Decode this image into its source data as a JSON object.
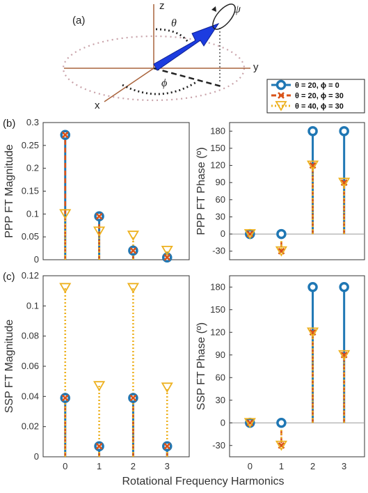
{
  "figure": {
    "panel_labels": {
      "a": "(a)",
      "b": "(b)",
      "c": "(c)"
    },
    "schematic": {
      "axis_z": "z",
      "axis_y": "y",
      "axis_x": "x",
      "theta": "θ",
      "phi": "ϕ",
      "psi": "ψ"
    },
    "xlabel": "Rotational Frequency Harmonics",
    "legend": [
      {
        "label": "θ = 20, ϕ = 0",
        "color": "#1f77b4",
        "marker": "circle",
        "line": "solid"
      },
      {
        "label": "θ = 20, ϕ = 30",
        "color": "#d95319",
        "marker": "x",
        "line": "dashed"
      },
      {
        "label": "θ = 40, ϕ = 30",
        "color": "#edb120",
        "marker": "triangle-down",
        "line": "dotted"
      }
    ]
  },
  "chart_data": [
    {
      "type": "stem",
      "ylabel": "PPP FT Magnitude",
      "categories": [
        "0",
        "1",
        "2",
        "3"
      ],
      "x": [
        0,
        1,
        2,
        3
      ],
      "ylim": [
        0,
        0.3
      ],
      "yticks": [
        "0",
        "0.05",
        "0.1",
        "0.15",
        "0.2",
        "0.25",
        "0.3"
      ],
      "series": [
        {
          "name": "θ = 20, ϕ = 0",
          "values": [
            0.273,
            0.095,
            0.02,
            0.005
          ]
        },
        {
          "name": "θ = 20, ϕ = 30",
          "values": [
            0.273,
            0.095,
            0.02,
            0.005
          ]
        },
        {
          "name": "θ = 40, ϕ = 30",
          "values": [
            0.1,
            0.062,
            0.053,
            0.02
          ]
        }
      ]
    },
    {
      "type": "stem",
      "ylabel": "PPP FT Phase (º)",
      "categories": [
        "0",
        "1",
        "2",
        "3"
      ],
      "x": [
        0,
        1,
        2,
        3
      ],
      "ylim": [
        -45,
        195
      ],
      "yticks": [
        "-30",
        "0",
        "30",
        "60",
        "90",
        "120",
        "150",
        "180"
      ],
      "series": [
        {
          "name": "θ = 20, ϕ = 0",
          "values": [
            0,
            0,
            180,
            180
          ]
        },
        {
          "name": "θ = 20, ϕ = 30",
          "values": [
            0,
            -30,
            120,
            90
          ]
        },
        {
          "name": "θ = 40, ϕ = 30",
          "values": [
            0,
            -30,
            120,
            90
          ]
        }
      ]
    },
    {
      "type": "stem",
      "ylabel": "SSP FT Magnitude",
      "categories": [
        "0",
        "1",
        "2",
        "3"
      ],
      "x": [
        0,
        1,
        2,
        3
      ],
      "ylim": [
        0,
        0.12
      ],
      "yticks": [
        "0",
        "0.02",
        "0.04",
        "0.06",
        "0.08",
        "0.1",
        "0.12"
      ],
      "series": [
        {
          "name": "θ = 20, ϕ = 0",
          "values": [
            0.039,
            0.007,
            0.039,
            0.007
          ]
        },
        {
          "name": "θ = 20, ϕ = 30",
          "values": [
            0.039,
            0.007,
            0.039,
            0.007
          ]
        },
        {
          "name": "θ = 40, ϕ = 30",
          "values": [
            0.112,
            0.047,
            0.112,
            0.046
          ]
        }
      ]
    },
    {
      "type": "stem",
      "ylabel": "SSP FT Phase (º)",
      "categories": [
        "0",
        "1",
        "2",
        "3"
      ],
      "x": [
        0,
        1,
        2,
        3
      ],
      "ylim": [
        -45,
        195
      ],
      "yticks": [
        "-30",
        "0",
        "30",
        "60",
        "90",
        "120",
        "150",
        "180"
      ],
      "series": [
        {
          "name": "θ = 20, ϕ = 0",
          "values": [
            0,
            0,
            180,
            180
          ]
        },
        {
          "name": "θ = 20, ϕ = 30",
          "values": [
            0,
            -30,
            120,
            90
          ]
        },
        {
          "name": "θ = 40, ϕ = 30",
          "values": [
            0,
            -30,
            120,
            90
          ]
        }
      ]
    }
  ]
}
